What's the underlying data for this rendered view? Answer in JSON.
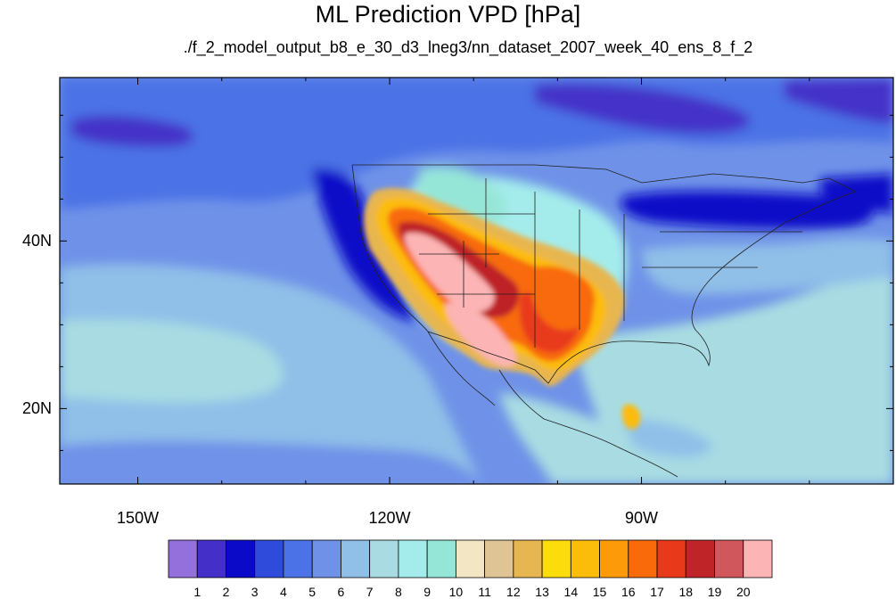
{
  "title": "ML Prediction VPD [hPa]",
  "subtitle": "./f_2_model_output_b8_e_30_d3_lneg3/nn_dataset_2007_week_40_ens_8_f_2",
  "lat_labels": [
    {
      "text": "40N",
      "lat": 40
    },
    {
      "text": "20N",
      "lat": 20
    }
  ],
  "lon_labels": [
    {
      "text": "150W",
      "lon": -150
    },
    {
      "text": "120W",
      "lon": -120
    },
    {
      "text": "90W",
      "lon": -90
    }
  ],
  "map_extent": {
    "lon_min": -159.3,
    "lon_max": -60,
    "lat_min": 11,
    "lat_max": 59.5
  },
  "colorbar": {
    "ticks": [
      "1",
      "2",
      "3",
      "4",
      "5",
      "6",
      "7",
      "8",
      "9",
      "10",
      "11",
      "12",
      "13",
      "14",
      "15",
      "16",
      "17",
      "18",
      "19",
      "20"
    ],
    "colors": [
      "#9370db",
      "#4430c8",
      "#0a0ac8",
      "#2e4bdc",
      "#4b72e6",
      "#6f92e8",
      "#90bfe8",
      "#a8dce2",
      "#a4ecec",
      "#96e6d8",
      "#f2e6c4",
      "#dfc496",
      "#e8b650",
      "#fcdc0a",
      "#fcbc0a",
      "#fc9a0a",
      "#f86a0a",
      "#e83a1a",
      "#be2428",
      "#d0585c",
      "#fcb4b4"
    ]
  }
}
